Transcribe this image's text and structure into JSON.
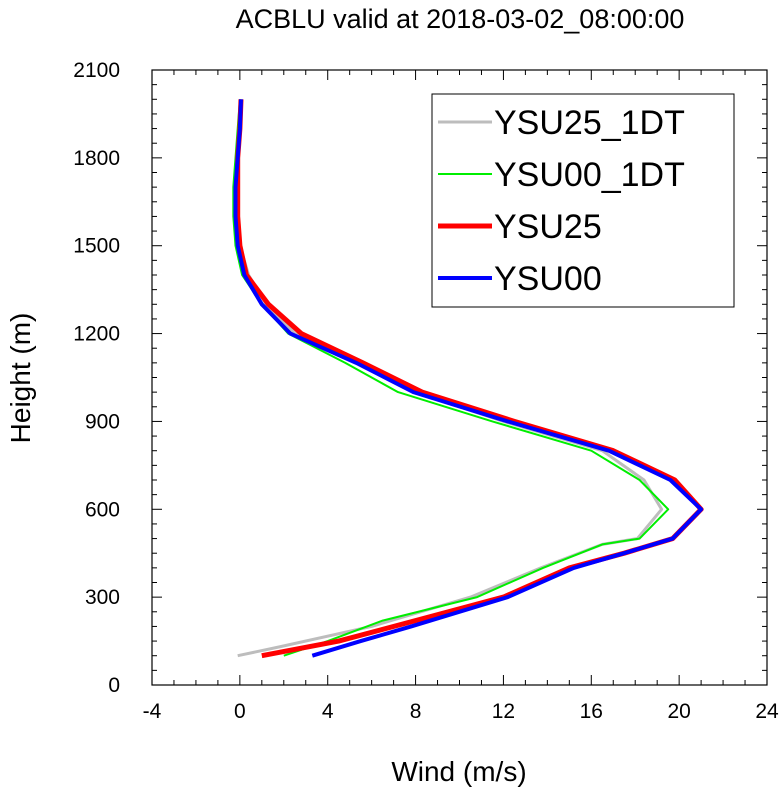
{
  "chart_data": {
    "type": "line",
    "title": "ACBLU valid at 2018-03-02_08:00:00",
    "xlabel": "Wind (m/s)",
    "ylabel": "Height (m)",
    "xlim": [
      -4,
      24
    ],
    "ylim": [
      0,
      2100
    ],
    "xticks": [
      -4,
      0,
      4,
      8,
      12,
      16,
      20,
      24
    ],
    "yticks": [
      0,
      300,
      600,
      900,
      1200,
      1500,
      1800,
      2100
    ],
    "grid": false,
    "legend_position": "top-right",
    "series": [
      {
        "name": "YSU25_1DT",
        "color": "#bdbdbd",
        "points": [
          [
            -0.1,
            100
          ],
          [
            1.8,
            130
          ],
          [
            6,
            200
          ],
          [
            10.5,
            300
          ],
          [
            13.7,
            400
          ],
          [
            16.5,
            480
          ],
          [
            18.1,
            500
          ],
          [
            19.2,
            600
          ],
          [
            18.4,
            700
          ],
          [
            16.5,
            800
          ],
          [
            12,
            900
          ],
          [
            8,
            1000
          ],
          [
            5.5,
            1100
          ],
          [
            2.5,
            1200
          ],
          [
            1.2,
            1300
          ],
          [
            0.4,
            1400
          ],
          [
            0,
            1500
          ],
          [
            -0.1,
            1600
          ],
          [
            -0.1,
            1700
          ],
          [
            -0.1,
            1800
          ],
          [
            0,
            1900
          ],
          [
            0.05,
            2000
          ]
        ]
      },
      {
        "name": "YSU00_1DT",
        "color": "#00ee00",
        "points": [
          [
            2,
            100
          ],
          [
            4,
            150
          ],
          [
            6.5,
            220
          ],
          [
            10.8,
            300
          ],
          [
            13.8,
            400
          ],
          [
            16.5,
            480
          ],
          [
            18.2,
            500
          ],
          [
            19.5,
            600
          ],
          [
            18.2,
            700
          ],
          [
            16,
            800
          ],
          [
            11.5,
            900
          ],
          [
            7.2,
            1000
          ],
          [
            4.8,
            1100
          ],
          [
            2.2,
            1200
          ],
          [
            1,
            1300
          ],
          [
            0.1,
            1400
          ],
          [
            -0.2,
            1500
          ],
          [
            -0.3,
            1600
          ],
          [
            -0.3,
            1700
          ],
          [
            -0.2,
            1800
          ],
          [
            -0.1,
            1900
          ],
          [
            0,
            2000
          ]
        ]
      },
      {
        "name": "YSU25",
        "color": "#ff0000",
        "points": [
          [
            1,
            100
          ],
          [
            4.5,
            150
          ],
          [
            7.5,
            210
          ],
          [
            12,
            300
          ],
          [
            15,
            400
          ],
          [
            17.5,
            450
          ],
          [
            19.7,
            500
          ],
          [
            21,
            600
          ],
          [
            19.8,
            700
          ],
          [
            17,
            800
          ],
          [
            12.5,
            900
          ],
          [
            8.3,
            1000
          ],
          [
            5.6,
            1100
          ],
          [
            2.8,
            1200
          ],
          [
            1.3,
            1300
          ],
          [
            0.3,
            1400
          ],
          [
            0,
            1500
          ],
          [
            -0.1,
            1600
          ],
          [
            -0.1,
            1700
          ],
          [
            -0.1,
            1800
          ],
          [
            0,
            1900
          ],
          [
            0.05,
            2000
          ]
        ]
      },
      {
        "name": "YSU00",
        "color": "#0000ff",
        "points": [
          [
            3.3,
            100
          ],
          [
            5.5,
            150
          ],
          [
            7.8,
            200
          ],
          [
            12.2,
            300
          ],
          [
            15.2,
            400
          ],
          [
            17.5,
            450
          ],
          [
            19.7,
            500
          ],
          [
            21,
            600
          ],
          [
            19.6,
            700
          ],
          [
            16.8,
            800
          ],
          [
            12.2,
            900
          ],
          [
            7.9,
            1000
          ],
          [
            5.3,
            1100
          ],
          [
            2.3,
            1200
          ],
          [
            1,
            1300
          ],
          [
            0.2,
            1400
          ],
          [
            -0.1,
            1500
          ],
          [
            -0.2,
            1600
          ],
          [
            -0.2,
            1700
          ],
          [
            -0.1,
            1800
          ],
          [
            0,
            1900
          ],
          [
            0.05,
            2000
          ]
        ]
      }
    ]
  }
}
